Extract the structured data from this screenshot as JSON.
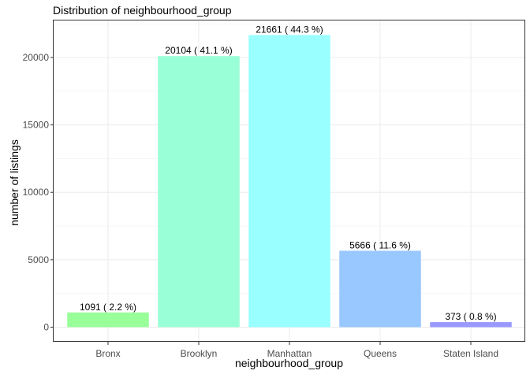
{
  "chart_data": {
    "type": "bar",
    "title": "Distribution of neighbourhood_group",
    "xlabel": "neighbourhood_group",
    "ylabel": "number of listings",
    "categories": [
      "Bronx",
      "Brooklyn",
      "Manhattan",
      "Queens",
      "Staten Island"
    ],
    "values": [
      1091,
      20104,
      21661,
      5666,
      373
    ],
    "data_labels": [
      "1091 ( 2.2 %)",
      "20104 ( 41.1 %)",
      "21661 ( 44.3 %)",
      "5666 ( 11.6 %)",
      "373 ( 0.8 %)"
    ],
    "colors": [
      "#99FF99",
      "#99FFD6",
      "#99FFFF",
      "#99C7FF",
      "#9999FF"
    ],
    "y_ticks": [
      0,
      5000,
      10000,
      15000,
      20000
    ],
    "ylim": [
      -1083,
      22744
    ],
    "grid": true,
    "legend": "none"
  }
}
